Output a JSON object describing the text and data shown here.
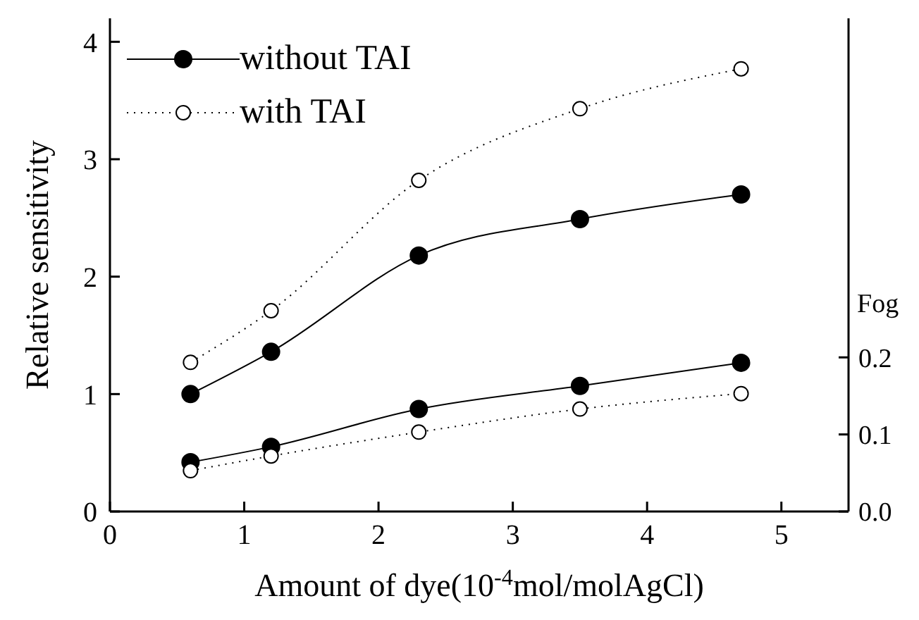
{
  "chart_data": {
    "type": "line",
    "xlabel": "Amount of dye(10$^{-4}$mol/molAgCl)",
    "ylabel": "Relative sensitivity",
    "y2label": "Fog",
    "xlim": [
      0,
      5.5
    ],
    "xticks": [
      0,
      1,
      2,
      3,
      4,
      5
    ],
    "ylim": [
      0,
      4.2
    ],
    "yticks": [
      0,
      1,
      2,
      3,
      4
    ],
    "y2lim": [
      0,
      0.64
    ],
    "y2ticks": [
      {
        "value": 0,
        "label": "0.0"
      },
      {
        "value": 0.1,
        "label": "0.1"
      },
      {
        "value": 0.2,
        "label": "0.2"
      }
    ],
    "legend": "top left",
    "grid": false,
    "marker": "circle",
    "series": [
      {
        "name": "without TAI",
        "color": "#000000",
        "line_style": "solid",
        "x": [
          0.6,
          1.2,
          2.3,
          3.5,
          4.7
        ],
        "values": [
          1.0,
          1.36,
          2.18,
          2.49,
          2.7
        ]
      },
      {
        "name": "with TAI",
        "color": "#000000",
        "line_style": "dotted",
        "x": [
          0.6,
          1.2,
          2.3,
          3.5,
          4.7
        ],
        "values": [
          1.27,
          1.71,
          2.82,
          3.43,
          3.77
        ]
      },
      {
        "color": "#000000",
        "line_style": "solid",
        "axis": "y2",
        "x": [
          0.6,
          1.2,
          2.3,
          3.5,
          4.7
        ],
        "values": [
          0.064,
          0.084,
          0.133,
          0.163,
          0.193
        ]
      },
      {
        "color": "#000000",
        "line_style": "dotted",
        "axis": "y2",
        "x": [
          0.6,
          1.2,
          2.3,
          3.5,
          4.7
        ],
        "values": [
          0.053,
          0.072,
          0.103,
          0.133,
          0.153
        ]
      }
    ]
  }
}
